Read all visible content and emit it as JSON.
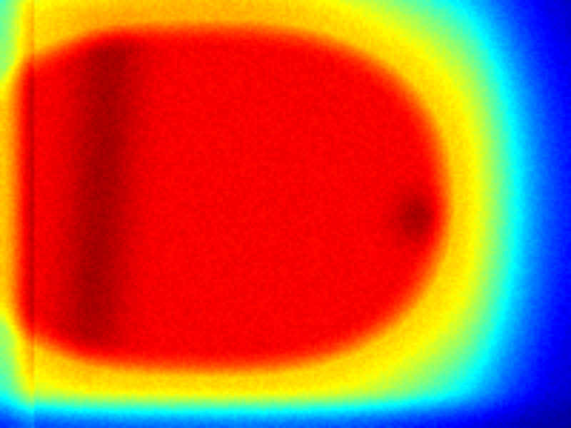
{
  "image": {
    "kind": "thermal-heatmap",
    "colormap": "jet",
    "palette": {
      "cold": "#00008f",
      "cool": "#0050ff",
      "cyan": "#00e8ff",
      "warm": "#ffff00",
      "hot": "#ff6a00",
      "hottest": "#d40000"
    },
    "features": [
      {
        "name": "warm-body-region",
        "shape": "rounded-bullet",
        "level": 0.88
      },
      {
        "name": "hot-spot-small-circle",
        "level": 0.97
      },
      {
        "name": "hot-streak-left",
        "level": 0.99
      }
    ]
  }
}
